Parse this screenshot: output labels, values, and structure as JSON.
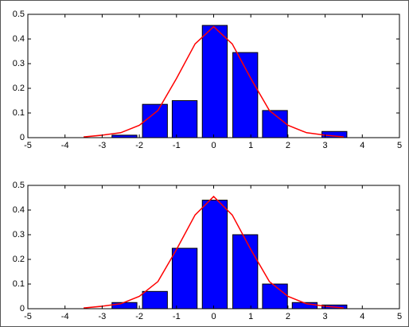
{
  "chart_data": [
    {
      "type": "bar",
      "x": [
        -2.4,
        -1.58,
        -0.78,
        0.03,
        0.85,
        1.65,
        2.45,
        3.25
      ],
      "values": [
        0.01,
        0.135,
        0.15,
        0.455,
        0.345,
        0.11,
        0,
        0.025
      ],
      "color": "#0000ff",
      "edgecolor": "#000000",
      "curve": {
        "x": [
          -3.5,
          -3,
          -2.5,
          -2,
          -1.5,
          -1,
          -0.5,
          0,
          0.5,
          1,
          1.5,
          2,
          2.5,
          3,
          3.5
        ],
        "values": [
          0.003,
          0.01,
          0.02,
          0.05,
          0.11,
          0.24,
          0.38,
          0.45,
          0.38,
          0.24,
          0.11,
          0.05,
          0.02,
          0.01,
          0.003
        ],
        "color": "#ff0000"
      },
      "xlim": [
        -5,
        5
      ],
      "ylim": [
        0,
        0.5
      ],
      "xticks": [
        -5,
        -4,
        -3,
        -2,
        -1,
        0,
        1,
        2,
        3,
        4,
        5
      ],
      "yticks": [
        0,
        0.1,
        0.2,
        0.3,
        0.4,
        0.5
      ]
    },
    {
      "type": "bar",
      "x": [
        -2.4,
        -1.58,
        -0.78,
        0.03,
        0.85,
        1.65,
        2.45,
        3.25
      ],
      "values": [
        0.025,
        0.07,
        0.245,
        0.44,
        0.3,
        0.1,
        0.025,
        0.015
      ],
      "color": "#0000ff",
      "edgecolor": "#000000",
      "curve": {
        "x": [
          -3.5,
          -3,
          -2.5,
          -2,
          -1.5,
          -1,
          -0.5,
          0,
          0.5,
          1,
          1.5,
          2,
          2.5,
          3,
          3.5
        ],
        "values": [
          0.003,
          0.01,
          0.02,
          0.05,
          0.11,
          0.24,
          0.38,
          0.455,
          0.38,
          0.24,
          0.11,
          0.05,
          0.02,
          0.01,
          0.003
        ],
        "color": "#ff0000"
      },
      "xlim": [
        -5,
        5
      ],
      "ylim": [
        0,
        0.5
      ],
      "xticks": [
        -5,
        -4,
        -3,
        -2,
        -1,
        0,
        1,
        2,
        3,
        4,
        5
      ],
      "yticks": [
        0,
        0.1,
        0.2,
        0.3,
        0.4,
        0.5
      ]
    }
  ]
}
